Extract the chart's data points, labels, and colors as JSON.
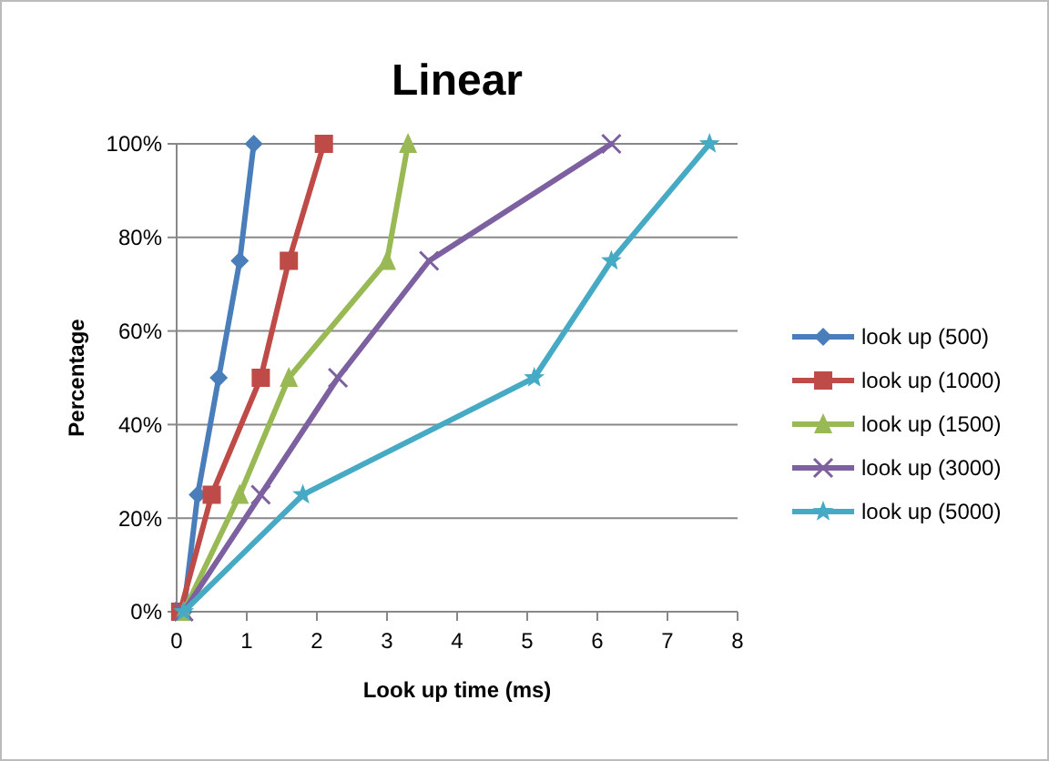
{
  "chart_data": {
    "type": "line",
    "title": "Linear",
    "xlabel": "Look up time (ms)",
    "ylabel": "Percentage",
    "xlim": [
      0,
      8
    ],
    "xticks": [
      0,
      1,
      2,
      3,
      4,
      5,
      6,
      7,
      8
    ],
    "ylim": [
      0,
      100
    ],
    "yticks": [
      {
        "value": 0,
        "label": "0%"
      },
      {
        "value": 20,
        "label": "20%"
      },
      {
        "value": 40,
        "label": "40%"
      },
      {
        "value": 60,
        "label": "60%"
      },
      {
        "value": 80,
        "label": "80%"
      },
      {
        "value": 100,
        "label": "100%"
      }
    ],
    "grid": "y",
    "legend": "right",
    "line_style": "solid",
    "series": [
      {
        "name": "look up (500)",
        "color": "#4a7ebb",
        "marker": "diamond",
        "x": [
          0.1,
          0.3,
          0.6,
          0.9,
          1.1
        ],
        "values": [
          0,
          25,
          50,
          75,
          100
        ]
      },
      {
        "name": "look up (1000)",
        "color": "#be4b48",
        "marker": "square",
        "x": [
          0.05,
          0.5,
          1.2,
          1.6,
          2.1
        ],
        "values": [
          0,
          25,
          50,
          75,
          100
        ]
      },
      {
        "name": "look up (1500)",
        "color": "#98b954",
        "marker": "triangle",
        "x": [
          0.1,
          0.9,
          1.6,
          3.0,
          3.3
        ],
        "values": [
          0,
          25,
          50,
          75,
          100
        ]
      },
      {
        "name": "look up (3000)",
        "color": "#7d60a0",
        "marker": "cross",
        "x": [
          0.1,
          1.2,
          2.3,
          3.6,
          6.2
        ],
        "values": [
          0,
          25,
          50,
          75,
          100
        ]
      },
      {
        "name": "look up (5000)",
        "color": "#46aac5",
        "marker": "star",
        "x": [
          0.1,
          1.8,
          5.1,
          6.2,
          7.6
        ],
        "values": [
          0,
          25,
          50,
          75,
          100
        ]
      }
    ]
  }
}
